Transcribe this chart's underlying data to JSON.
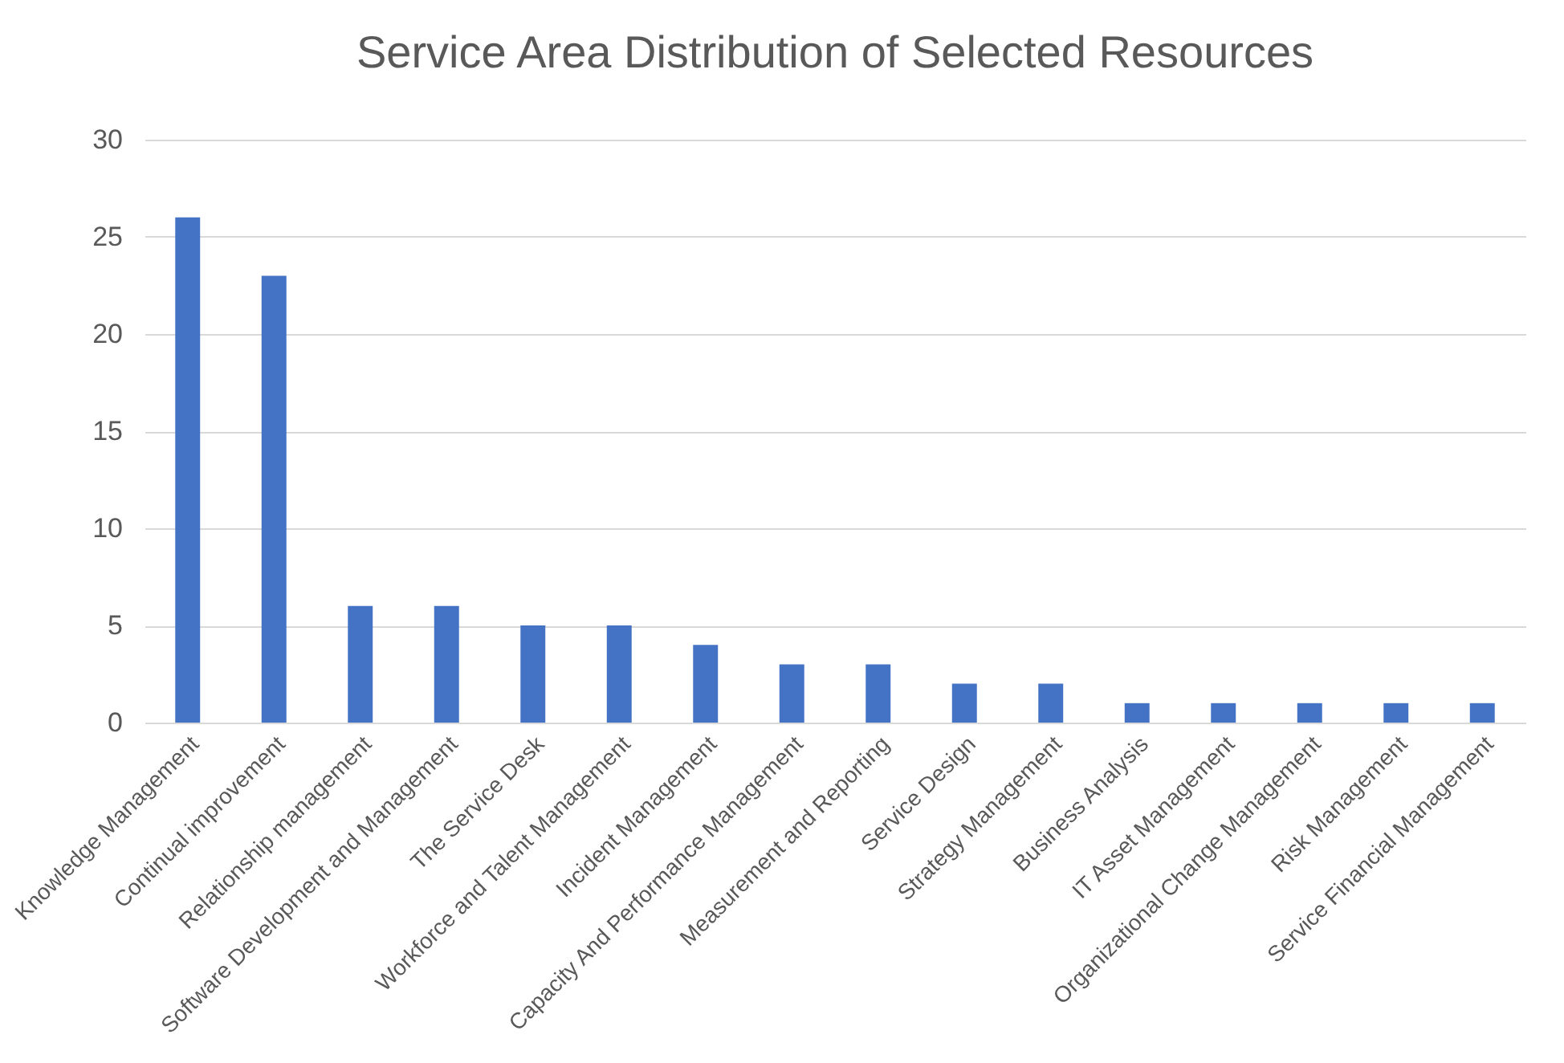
{
  "chart_data": {
    "type": "bar",
    "title": "Service Area Distribution of Selected Resources",
    "categories": [
      "Knowledge Management",
      "Continual improvement",
      "Relationship management",
      "Software Development and Management",
      "The Service Desk",
      "Workforce and Talent Management",
      "Incident Management",
      "Capacity And Performance Management",
      "Measurement and Reporting",
      "Service Design",
      "Strategy Management",
      "Business Analysis",
      "IT Asset Management",
      "Organizational Change Management",
      "Risk Management",
      "Service Financial Management"
    ],
    "values": [
      26,
      23,
      6,
      6,
      5,
      5,
      4,
      3,
      3,
      2,
      2,
      1,
      1,
      1,
      1,
      1
    ],
    "color": "#4472c4",
    "ylim": [
      0,
      30
    ],
    "yticks": [
      0,
      5,
      10,
      15,
      20,
      25,
      30
    ],
    "grid": "y"
  }
}
